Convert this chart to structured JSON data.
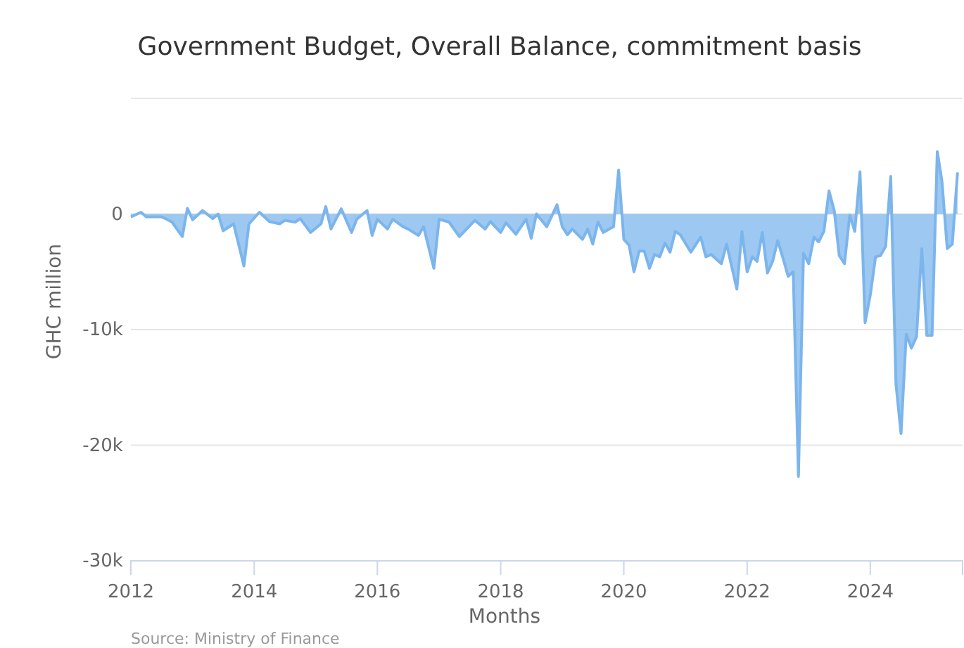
{
  "chart_data": {
    "type": "area",
    "title": "Government Budget, Overall Balance, commitment basis",
    "xlabel": "Months",
    "ylabel": "GHC million",
    "annotations": [
      "Source: Ministry of Finance"
    ],
    "xlim": [
      "2012-01",
      "2025-07"
    ],
    "xticks": [
      "2012",
      "2014",
      "2016",
      "2018",
      "2020",
      "2022",
      "2024"
    ],
    "ylim": [
      -30000,
      10000
    ],
    "yticks": [
      {
        "value": -30000,
        "label": "-30k"
      },
      {
        "value": -20000,
        "label": "-20k"
      },
      {
        "value": -10000,
        "label": "-10k"
      },
      {
        "value": 0,
        "label": "0"
      },
      {
        "value": 10000,
        "label": null
      }
    ],
    "grid": "y",
    "x": [
      "2012-01",
      "2012-03",
      "2012-04",
      "2012-07",
      "2012-08",
      "2012-09",
      "2012-11",
      "2012-12",
      "2013-01",
      "2013-03",
      "2013-05",
      "2013-06",
      "2013-07",
      "2013-09",
      "2013-11",
      "2013-12",
      "2014-02",
      "2014-04",
      "2014-06",
      "2014-07",
      "2014-09",
      "2014-10",
      "2014-12",
      "2015-02",
      "2015-03",
      "2015-04",
      "2015-06",
      "2015-08",
      "2015-09",
      "2015-11",
      "2015-12",
      "2016-01",
      "2016-03",
      "2016-04",
      "2016-06",
      "2016-07",
      "2016-09",
      "2016-10",
      "2016-12",
      "2017-01",
      "2017-03",
      "2017-05",
      "2017-08",
      "2017-10",
      "2017-11",
      "2018-01",
      "2018-02",
      "2018-04",
      "2018-06",
      "2018-07",
      "2018-08",
      "2018-10",
      "2018-12",
      "2019-01",
      "2019-02",
      "2019-03",
      "2019-05",
      "2019-06",
      "2019-07",
      "2019-08",
      "2019-09",
      "2019-11",
      "2019-12",
      "2020-01",
      "2020-02",
      "2020-03",
      "2020-04",
      "2020-05",
      "2020-06",
      "2020-07",
      "2020-08",
      "2020-09",
      "2020-10",
      "2020-11",
      "2020-12",
      "2021-02",
      "2021-04",
      "2021-05",
      "2021-06",
      "2021-08",
      "2021-09",
      "2021-11",
      "2021-12",
      "2022-01",
      "2022-02",
      "2022-03",
      "2022-04",
      "2022-05",
      "2022-06",
      "2022-07",
      "2022-08",
      "2022-09",
      "2022-10",
      "2022-11",
      "2022-12",
      "2023-01",
      "2023-02",
      "2023-03",
      "2023-04",
      "2023-05",
      "2023-06",
      "2023-07",
      "2023-08",
      "2023-09",
      "2023-10",
      "2023-11",
      "2023-12",
      "2024-01",
      "2024-02",
      "2024-03",
      "2024-04",
      "2024-05",
      "2024-06",
      "2024-07",
      "2024-08",
      "2024-09",
      "2024-10",
      "2024-11",
      "2024-12",
      "2025-01",
      "2025-02",
      "2025-03",
      "2025-04",
      "2025-05",
      "2025-06"
    ],
    "series": [
      {
        "color": "#7cb5ec",
        "values": [
          -250,
          150,
          -250,
          -250,
          -450,
          -700,
          -1950,
          500,
          -500,
          300,
          -400,
          0,
          -1450,
          -850,
          -4500,
          -850,
          150,
          -650,
          -850,
          -550,
          -700,
          -400,
          -1600,
          -850,
          650,
          -1300,
          450,
          -1600,
          -450,
          300,
          -1850,
          -450,
          -1300,
          -450,
          -1100,
          -1300,
          -1850,
          -1100,
          -4700,
          -450,
          -700,
          -1950,
          -550,
          -1300,
          -650,
          -1600,
          -750,
          -1750,
          -450,
          -2100,
          0,
          -1100,
          800,
          -1100,
          -1800,
          -1300,
          -2200,
          -1300,
          -2600,
          -700,
          -1600,
          -1100,
          3800,
          -2200,
          -2700,
          -5000,
          -3200,
          -3200,
          -4700,
          -3500,
          -3700,
          -2500,
          -3300,
          -1500,
          -1800,
          -3300,
          -2000,
          -3700,
          -3500,
          -4300,
          -2600,
          -6500,
          -1500,
          -5000,
          -3700,
          -4100,
          -1600,
          -5100,
          -4100,
          -2300,
          -3800,
          -5400,
          -5000,
          -22700,
          -3400,
          -4300,
          -2000,
          -2400,
          -1500,
          2000,
          300,
          -3600,
          -4300,
          -100,
          -1500,
          3650,
          -9400,
          -7000,
          -3700,
          -3600,
          -2800,
          3250,
          -14700,
          -19000,
          -10400,
          -11600,
          -10600,
          -3000,
          -10500,
          -10500,
          5400,
          2800,
          -3000,
          -2600,
          3600
        ]
      }
    ]
  }
}
